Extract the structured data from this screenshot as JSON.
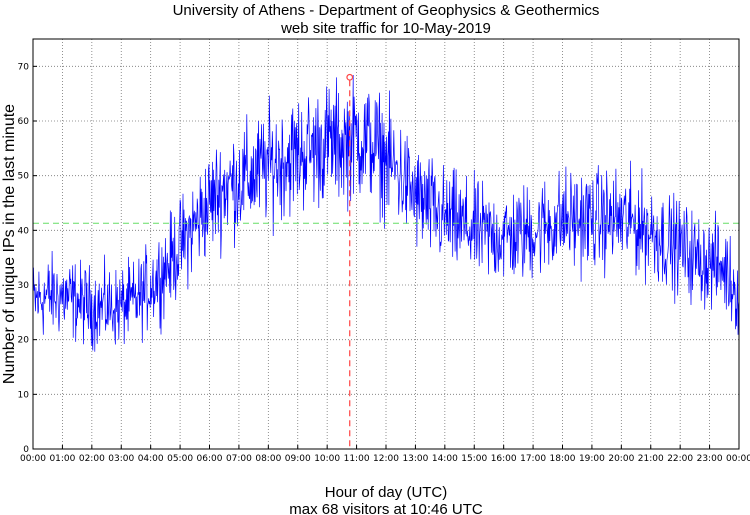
{
  "chart_data": {
    "type": "line",
    "title": "University of Athens - Department of Geophysics & Geothermics",
    "subtitle": "web site traffic for 10-May-2019",
    "xlabel": "Hour of day (UTC)",
    "ylabel": "Number of unique IPs in the last minute",
    "caption": "max 68 visitors at 10:46 UTC",
    "xlim": [
      0,
      24
    ],
    "ylim": [
      0,
      75
    ],
    "grid": true,
    "xticks": [
      "00:00",
      "01:00",
      "02:00",
      "03:00",
      "04:00",
      "05:00",
      "06:00",
      "07:00",
      "08:00",
      "09:00",
      "10:00",
      "11:00",
      "12:00",
      "13:00",
      "14:00",
      "15:00",
      "16:00",
      "17:00",
      "18:00",
      "19:00",
      "20:00",
      "21:00",
      "22:00",
      "23:00",
      "00:00"
    ],
    "yticks": [
      "0",
      "10",
      "20",
      "30",
      "40",
      "50",
      "60",
      "70"
    ],
    "series": [
      {
        "color": "#0000ff",
        "x": [
          0,
          0.5,
          1,
          1.5,
          2,
          2.5,
          3,
          3.5,
          4,
          4.5,
          5,
          5.5,
          6,
          6.5,
          7,
          7.5,
          8,
          8.5,
          9,
          9.5,
          10,
          10.5,
          11,
          11.5,
          12,
          12.5,
          13,
          13.5,
          14,
          14.5,
          15,
          15.5,
          16,
          16.5,
          17,
          17.5,
          18,
          18.5,
          19,
          19.5,
          20,
          20.5,
          21,
          21.5,
          22,
          22.5,
          23,
          23.5,
          24
        ],
        "y": [
          27,
          28,
          28,
          27,
          26,
          26,
          26,
          27,
          30,
          33,
          37,
          41,
          45,
          48,
          49,
          50,
          52,
          53,
          54,
          55,
          56,
          56,
          57,
          56,
          53,
          50,
          46,
          44,
          42,
          41,
          40,
          39,
          39,
          39,
          40,
          41,
          42,
          42,
          42,
          42,
          42,
          41,
          40,
          38,
          37,
          35,
          34,
          33,
          28
        ]
      }
    ],
    "mean_line": {
      "value": 41.3,
      "color": "#66dd66"
    },
    "max_marker": {
      "x": 10.767,
      "y": 68,
      "color": "#ff4444"
    }
  }
}
